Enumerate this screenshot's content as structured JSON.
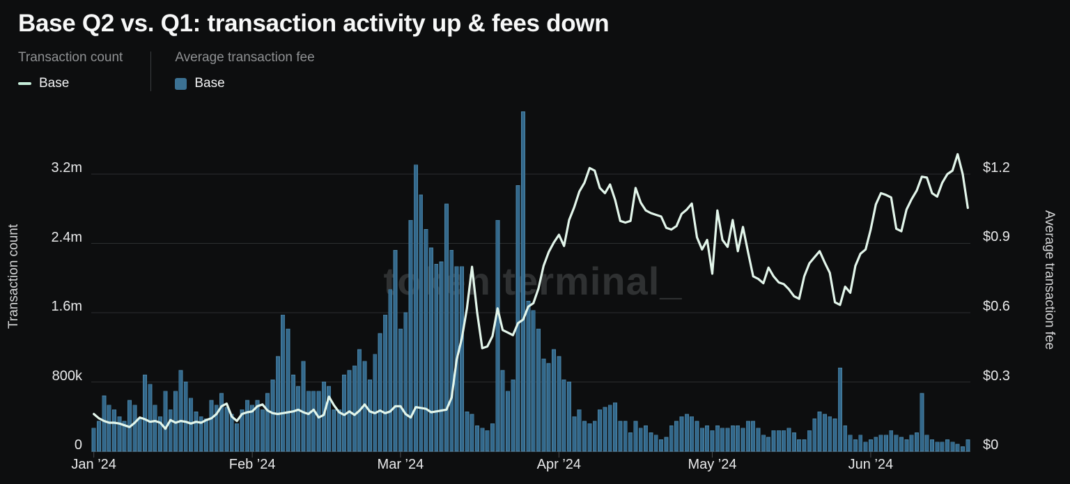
{
  "header": {
    "title": "Base Q2 vs. Q1: transaction activity up & fees down"
  },
  "legend": {
    "groups": [
      {
        "title": "Transaction count",
        "item_label": "Base",
        "swatch": "line-dash",
        "color": "#c6edda"
      },
      {
        "title": "Average transaction fee",
        "item_label": "Base",
        "swatch": "square",
        "color": "#3c7294"
      }
    ]
  },
  "axes": {
    "left": {
      "title": "Transaction count"
    },
    "right": {
      "title": "Average transaction fee"
    }
  },
  "watermark": "token terminal_",
  "chart_data": {
    "type": "combo",
    "title": "Base Q2 vs. Q1: transaction activity up & fees down",
    "grid": "horizontal",
    "legend_position": "top-left",
    "watermark": "token terminal_",
    "x_axis": {
      "granularity": "daily",
      "range": "Jan 1 2024 - Jun 20 2024",
      "num_days": 172,
      "tick_labels": [
        "Jan ’24",
        "Feb ’24",
        "Mar ’24",
        "Apr ’24",
        "May ’24",
        "Jun ’24"
      ],
      "month_start_indices": [
        0,
        31,
        60,
        91,
        121,
        152
      ]
    },
    "left_axis": {
      "title": "Transaction count",
      "range_millions": [
        0,
        4.0
      ],
      "ticks": [
        {
          "label": "3.2m",
          "value_m": 3.2
        },
        {
          "label": "2.4m",
          "value_m": 2.4
        },
        {
          "label": "1.6m",
          "value_m": 1.6
        },
        {
          "label": "800k",
          "value_m": 0.8
        },
        {
          "label": "0",
          "value_m": 0
        }
      ]
    },
    "right_axis": {
      "title": "Average transaction fee",
      "range_usd": [
        0,
        1.5
      ],
      "ticks": [
        {
          "label": "$1.2",
          "value_usd": 1.2
        },
        {
          "label": "$0.9",
          "value_usd": 0.9
        },
        {
          "label": "$0.6",
          "value_usd": 0.6
        },
        {
          "label": "$0.3",
          "value_usd": 0.3
        },
        {
          "label": "$0",
          "value_usd": 0
        }
      ]
    },
    "series": [
      {
        "name": "Base",
        "metric": "Transaction count",
        "type": "line",
        "axis": "left",
        "color": "#e3f6eb",
        "unit": "transactions (millions)",
        "values": [
          0.43,
          0.38,
          0.35,
          0.33,
          0.33,
          0.32,
          0.3,
          0.28,
          0.33,
          0.39,
          0.37,
          0.34,
          0.35,
          0.33,
          0.26,
          0.36,
          0.33,
          0.35,
          0.34,
          0.32,
          0.34,
          0.33,
          0.36,
          0.38,
          0.43,
          0.52,
          0.55,
          0.4,
          0.35,
          0.43,
          0.45,
          0.46,
          0.52,
          0.54,
          0.47,
          0.44,
          0.43,
          0.44,
          0.45,
          0.46,
          0.48,
          0.45,
          0.43,
          0.48,
          0.39,
          0.42,
          0.63,
          0.53,
          0.45,
          0.42,
          0.46,
          0.42,
          0.47,
          0.54,
          0.46,
          0.44,
          0.47,
          0.44,
          0.46,
          0.52,
          0.52,
          0.43,
          0.39,
          0.51,
          0.5,
          0.49,
          0.45,
          0.46,
          0.47,
          0.48,
          0.62,
          1.06,
          1.3,
          1.65,
          2.13,
          1.6,
          1.19,
          1.21,
          1.33,
          1.65,
          1.4,
          1.37,
          1.34,
          1.48,
          1.52,
          1.67,
          1.71,
          1.88,
          2.14,
          2.3,
          2.41,
          2.5,
          2.37,
          2.67,
          2.82,
          3.0,
          3.1,
          3.27,
          3.24,
          3.04,
          2.98,
          3.08,
          2.9,
          2.66,
          2.64,
          2.66,
          3.04,
          2.87,
          2.78,
          2.75,
          2.73,
          2.71,
          2.58,
          2.56,
          2.6,
          2.74,
          2.79,
          2.86,
          2.47,
          2.33,
          2.44,
          2.05,
          2.78,
          2.44,
          2.36,
          2.67,
          2.31,
          2.59,
          2.3,
          2.02,
          1.99,
          1.94,
          2.12,
          2.02,
          1.95,
          1.93,
          1.87,
          1.79,
          1.76,
          2.02,
          2.17,
          2.24,
          2.31,
          2.18,
          2.06,
          1.72,
          1.69,
          1.9,
          1.83,
          2.14,
          2.28,
          2.33,
          2.56,
          2.85,
          2.98,
          2.96,
          2.93,
          2.57,
          2.54,
          2.79,
          2.91,
          3.01,
          3.17,
          3.16,
          2.98,
          2.94,
          3.1,
          3.2,
          3.24,
          3.43,
          3.2,
          2.81
        ]
      },
      {
        "name": "Base",
        "metric": "Average transaction fee",
        "type": "bar",
        "axis": "right",
        "color": "#33688b",
        "unit": "USD",
        "values": [
          0.1,
          0.13,
          0.24,
          0.2,
          0.18,
          0.15,
          0.13,
          0.22,
          0.2,
          0.14,
          0.33,
          0.29,
          0.2,
          0.15,
          0.26,
          0.18,
          0.26,
          0.35,
          0.3,
          0.23,
          0.17,
          0.15,
          0.14,
          0.22,
          0.2,
          0.25,
          0.19,
          0.16,
          0.12,
          0.18,
          0.22,
          0.2,
          0.22,
          0.18,
          0.25,
          0.31,
          0.41,
          0.59,
          0.53,
          0.33,
          0.28,
          0.39,
          0.26,
          0.26,
          0.26,
          0.3,
          0.28,
          0.18,
          0.18,
          0.33,
          0.35,
          0.37,
          0.44,
          0.39,
          0.31,
          0.42,
          0.51,
          0.59,
          0.7,
          0.87,
          0.53,
          0.6,
          1.0,
          1.24,
          1.11,
          0.96,
          0.88,
          0.81,
          0.82,
          1.07,
          0.87,
          0.8,
          0.8,
          0.17,
          0.16,
          0.11,
          0.1,
          0.09,
          0.12,
          1.0,
          0.35,
          0.26,
          0.31,
          1.15,
          1.47,
          0.65,
          0.61,
          0.53,
          0.4,
          0.38,
          0.44,
          0.41,
          0.31,
          0.3,
          0.15,
          0.18,
          0.13,
          0.12,
          0.13,
          0.18,
          0.19,
          0.2,
          0.21,
          0.13,
          0.13,
          0.08,
          0.13,
          0.1,
          0.11,
          0.08,
          0.07,
          0.05,
          0.06,
          0.11,
          0.13,
          0.15,
          0.16,
          0.15,
          0.13,
          0.1,
          0.11,
          0.09,
          0.11,
          0.1,
          0.1,
          0.11,
          0.11,
          0.1,
          0.13,
          0.13,
          0.1,
          0.07,
          0.06,
          0.09,
          0.09,
          0.09,
          0.1,
          0.08,
          0.05,
          0.05,
          0.09,
          0.14,
          0.17,
          0.16,
          0.15,
          0.14,
          0.36,
          0.11,
          0.07,
          0.05,
          0.07,
          0.04,
          0.05,
          0.06,
          0.07,
          0.07,
          0.09,
          0.07,
          0.06,
          0.05,
          0.07,
          0.08,
          0.25,
          0.07,
          0.05,
          0.04,
          0.04,
          0.05,
          0.04,
          0.03,
          0.02,
          0.05
        ]
      }
    ]
  }
}
